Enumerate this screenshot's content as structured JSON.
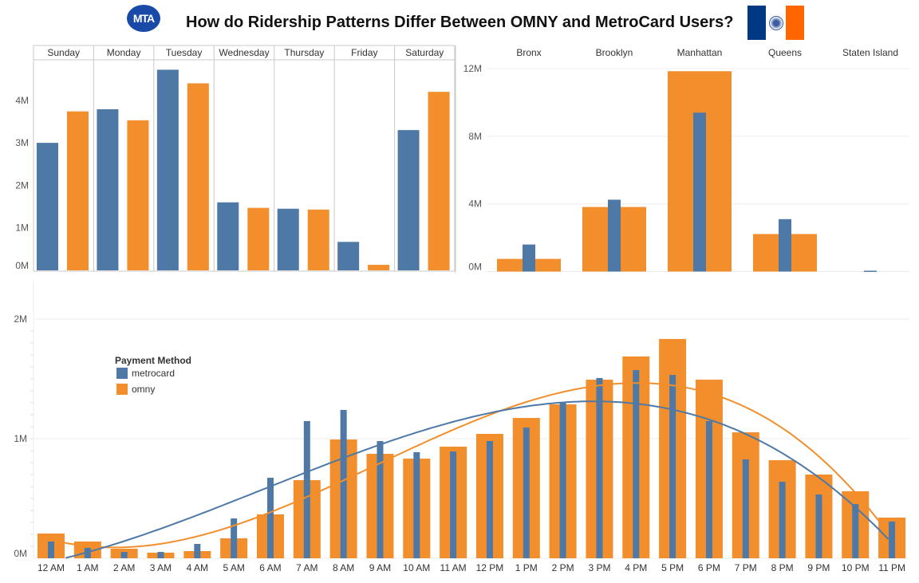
{
  "title": "How do Ridership Patterns Differ Between OMNY and MetroCard Users?",
  "logos": {
    "mta": "MTA",
    "flag_colors": [
      "#003884",
      "#ffffff",
      "#ff6600"
    ]
  },
  "colors": {
    "metrocard": "#4e79a7",
    "omny": "#f28e2b"
  },
  "legend": {
    "title": "Payment Method",
    "items": [
      "metrocard",
      "omny"
    ]
  },
  "chart_data": [
    {
      "type": "bar",
      "categories": [
        "Sunday",
        "Monday",
        "Tuesday",
        "Wednesday",
        "Thursday",
        "Friday",
        "Saturday"
      ],
      "series": [
        {
          "name": "metrocard",
          "values": [
            3.0,
            3.79,
            4.72,
            1.6,
            1.45,
            0.67,
            3.3
          ]
        },
        {
          "name": "omny",
          "values": [
            3.74,
            3.53,
            4.4,
            1.47,
            1.43,
            0.13,
            4.2
          ]
        }
      ],
      "unit": "M",
      "yticks": [
        "0M",
        "1M",
        "2M",
        "3M",
        "4M"
      ],
      "ylim": [
        0,
        5.1
      ]
    },
    {
      "type": "bar",
      "categories": [
        "Bronx",
        "Brooklyn",
        "Manhattan",
        "Queens",
        "Staten Island"
      ],
      "series": [
        {
          "name": "omny",
          "values": [
            0.75,
            3.82,
            11.85,
            2.22,
            0.0
          ]
        },
        {
          "name": "metrocard",
          "values": [
            1.6,
            4.25,
            9.4,
            3.1,
            0.05
          ]
        }
      ],
      "unit": "M",
      "yticks": [
        "0M",
        "4M",
        "8M",
        "12M"
      ],
      "ylim": [
        0,
        12
      ]
    },
    {
      "type": "bar",
      "categories": [
        "12 AM",
        "1 AM",
        "2 AM",
        "3 AM",
        "4 AM",
        "5 AM",
        "6 AM",
        "7 AM",
        "8 AM",
        "9 AM",
        "10 AM",
        "11 AM",
        "12 PM",
        "1 PM",
        "2 PM",
        "3 PM",
        "4 PM",
        "5 PM",
        "6 PM",
        "7 PM",
        "8 PM",
        "9 PM",
        "10 PM",
        "11 PM"
      ],
      "series": [
        {
          "name": "omny",
          "values": [
            0.207,
            0.14,
            0.08,
            0.047,
            0.06,
            0.167,
            0.367,
            0.653,
            0.993,
            0.873,
            0.833,
            0.933,
            1.04,
            1.173,
            1.287,
            1.493,
            1.687,
            1.833,
            1.493,
            1.053,
            0.82,
            0.7,
            0.56,
            0.34
          ]
        },
        {
          "name": "metrocard",
          "values": [
            0.14,
            0.087,
            0.053,
            0.053,
            0.12,
            0.333,
            0.673,
            1.147,
            1.24,
            0.98,
            0.887,
            0.893,
            0.98,
            1.093,
            1.3,
            1.507,
            1.573,
            1.533,
            1.147,
            0.827,
            0.64,
            0.533,
            0.453,
            0.307
          ]
        }
      ],
      "trend_lines": "polynomial",
      "unit": "M",
      "yticks": [
        "0M",
        "1M",
        "2M"
      ],
      "ylim": [
        0,
        2.0
      ]
    }
  ]
}
